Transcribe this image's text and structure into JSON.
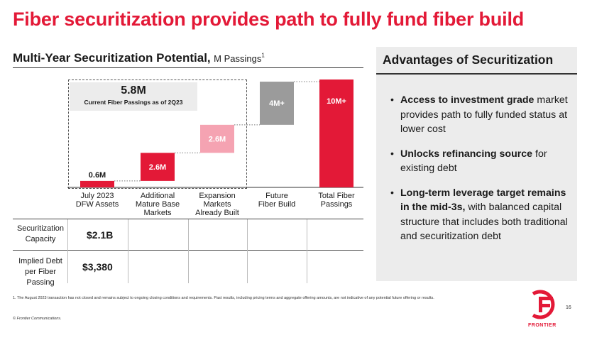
{
  "title": "Fiber securitization provides path to fully fund fiber build",
  "left_header": {
    "title": "Multi-Year Securitization Potential,",
    "unit": "M Passings",
    "footnote_marker": "1"
  },
  "callout": {
    "value": "5.8M",
    "text": "Current Fiber Passings as of 2Q23"
  },
  "chart_data": {
    "type": "bar",
    "subtype": "waterfall",
    "title": "Multi-Year Securitization Potential",
    "ylabel": "M Passings",
    "categories": [
      "July 2023\nDFW Assets",
      "Additional\nMature Base\nMarkets",
      "Expansion\nMarkets\nAlready Built",
      "Future\nFiber Build",
      "Total Fiber\nPassings"
    ],
    "values": [
      0.6,
      2.6,
      2.6,
      4.0,
      10.0
    ],
    "labels": [
      "0.6M",
      "2.6M",
      "2.6M",
      "4M+",
      "10M+"
    ],
    "colors": [
      "#e31937",
      "#e31937",
      "#f5a3b2",
      "#9b9b9b",
      "#e31937"
    ],
    "ylim": [
      0,
      10
    ],
    "grid": false
  },
  "table": {
    "rows": [
      {
        "label": "Securitization\nCapacity",
        "value": "$2.1B"
      },
      {
        "label": "Implied Debt\nper Fiber\nPassing",
        "value": "$3,380"
      }
    ]
  },
  "right_panel": {
    "title": "Advantages of Securitization",
    "bullets": [
      {
        "bold": "Access to investment grade",
        "rest": " market provides path to fully funded status at lower cost"
      },
      {
        "bold": "Unlocks refinancing source",
        "rest": " for existing debt"
      },
      {
        "bold": "Long-term leverage target remains in the mid-3s,",
        "rest": " with balanced capital structure that includes both traditional and securitization debt"
      }
    ]
  },
  "footnote": "1. The August 2023 transaction has not closed and remains subject to ongoing closing conditions and requirements. Past results, including pricing terms and aggregate offering amounts, are not indicative of any potential future offering or results.",
  "copyright": "© Frontier Communications.",
  "page_number": "16",
  "logo_text": "FRONTIER",
  "colors": {
    "accent": "#e31937",
    "light_red": "#f5a3b2",
    "gray_bar": "#9b9b9b"
  }
}
